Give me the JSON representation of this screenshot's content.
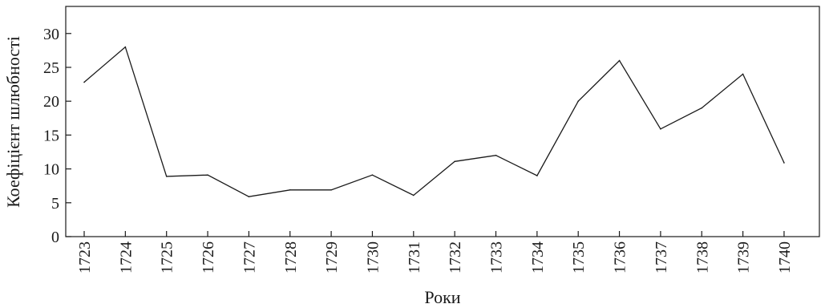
{
  "chart_data": {
    "type": "line",
    "title": "",
    "xlabel": "Роки",
    "ylabel": "Коефіцієнт шлюбності",
    "x": [
      "1723",
      "1724",
      "1725",
      "1726",
      "1727",
      "1728",
      "1729",
      "1730",
      "1731",
      "1732",
      "1733",
      "1734",
      "1735",
      "1736",
      "1737",
      "1738",
      "1739",
      "1740"
    ],
    "series": [
      {
        "values": [
          22.8,
          28,
          8.9,
          9.1,
          5.9,
          6.9,
          6.9,
          9.1,
          6.1,
          11.1,
          12,
          9,
          20,
          26,
          15.9,
          19,
          24,
          10.9
        ]
      }
    ],
    "ylim": [
      0,
      34
    ],
    "yticks": [
      0,
      5,
      10,
      15,
      20,
      25,
      30
    ],
    "grid": false,
    "line_color": "#1a1a1a"
  }
}
